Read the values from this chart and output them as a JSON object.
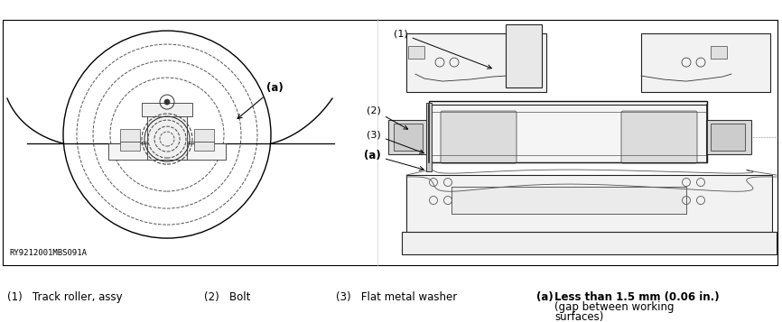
{
  "figure_width": 8.66,
  "figure_height": 3.57,
  "dpi": 100,
  "background_color": "#ffffff",
  "ref_code": "RY9212001MBS091A",
  "legend": {
    "item1": "(1)   Track roller, assy",
    "item2": "(2)   Bolt",
    "item3": "(3)   Flat metal washer",
    "item_a_key": "(a)",
    "item_a_val1": "Less than 1.5 mm (0.06 in.)",
    "item_a_val2": "(gap between working",
    "item_a_val3": "surfaces)"
  },
  "font_size_legend": 8.5
}
